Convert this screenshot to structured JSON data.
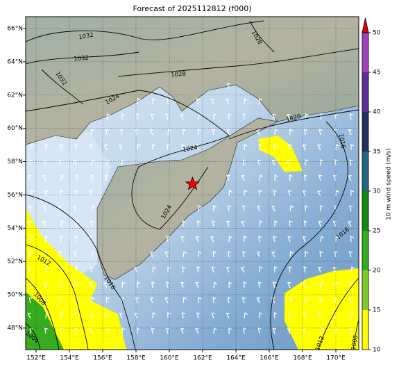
{
  "title": "Forecast of 2025112812 (f000)",
  "map": {
    "lon_ticks": [
      {
        "value": 152,
        "label": "152°E"
      },
      {
        "value": 154,
        "label": "154°E"
      },
      {
        "value": 156,
        "label": "156°E"
      },
      {
        "value": 158,
        "label": "158°E"
      },
      {
        "value": 160,
        "label": "160°E"
      },
      {
        "value": 162,
        "label": "162°E"
      },
      {
        "value": 164,
        "label": "164°E"
      },
      {
        "value": 166,
        "label": "166°E"
      },
      {
        "value": 168,
        "label": "168°E"
      },
      {
        "value": 170,
        "label": "170°E"
      }
    ],
    "lat_ticks": [
      {
        "value": 48,
        "label": "48°N"
      },
      {
        "value": 50,
        "label": "50°N"
      },
      {
        "value": 52,
        "label": "52°N"
      },
      {
        "value": 54,
        "label": "54°N"
      },
      {
        "value": 56,
        "label": "56°N"
      },
      {
        "value": 58,
        "label": "58°N"
      },
      {
        "value": 60,
        "label": "60°N"
      },
      {
        "value": 62,
        "label": "62°N"
      },
      {
        "value": 64,
        "label": "64°N"
      },
      {
        "value": 66,
        "label": "66°N"
      }
    ],
    "contour_labels": [
      1032,
      1032,
      1032,
      1028,
      1028,
      1024,
      1024,
      1024,
      1020,
      1016,
      1016,
      1016,
      1012,
      1008,
      1004,
      1012,
      1008
    ]
  },
  "colorbar": {
    "label": "10 m wind speed (m/s)",
    "ticks": [
      10,
      15,
      20,
      25,
      30,
      35,
      40,
      45,
      50
    ],
    "colors": [
      "#ffff00",
      "#7ccd2a",
      "#35ad1f",
      "#118c11",
      "#1f6a80",
      "#22305f",
      "#5c2d9c",
      "#a23fc2"
    ],
    "extend_color": "#e00000"
  }
}
